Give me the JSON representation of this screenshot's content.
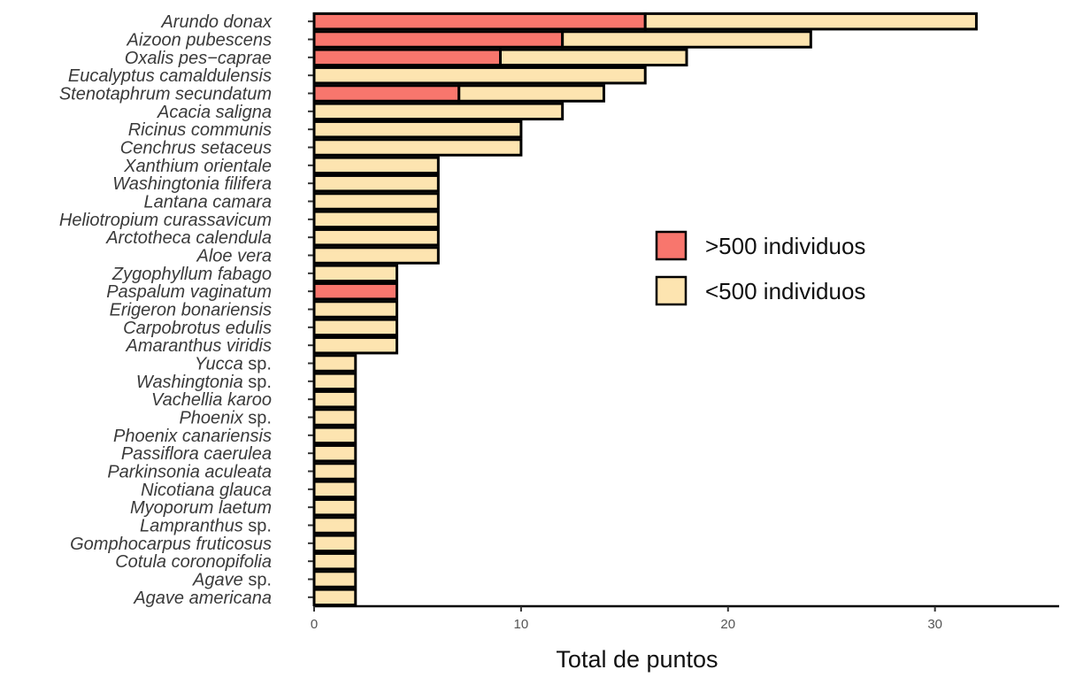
{
  "chart_data": {
    "type": "bar",
    "orientation": "horizontal",
    "stacked": true,
    "xlabel": "Total de puntos",
    "xlim": [
      0,
      36
    ],
    "xticks": [
      0,
      10,
      20,
      30
    ],
    "categories": [
      {
        "name": "Arundo donax",
        "suffix": ""
      },
      {
        "name": "Aizoon pubescens",
        "suffix": ""
      },
      {
        "name": "Oxalis pes−caprae",
        "suffix": ""
      },
      {
        "name": "Eucalyptus camaldulensis",
        "suffix": ""
      },
      {
        "name": "Stenotaphrum secundatum",
        "suffix": ""
      },
      {
        "name": "Acacia saligna",
        "suffix": ""
      },
      {
        "name": "Ricinus communis",
        "suffix": ""
      },
      {
        "name": "Cenchrus setaceus",
        "suffix": ""
      },
      {
        "name": "Xanthium orientale",
        "suffix": ""
      },
      {
        "name": "Washingtonia filifera",
        "suffix": ""
      },
      {
        "name": "Lantana camara",
        "suffix": ""
      },
      {
        "name": "Heliotropium curassavicum",
        "suffix": ""
      },
      {
        "name": "Arctotheca calendula",
        "suffix": ""
      },
      {
        "name": "Aloe vera",
        "suffix": ""
      },
      {
        "name": "Zygophyllum fabago",
        "suffix": ""
      },
      {
        "name": "Paspalum vaginatum",
        "suffix": ""
      },
      {
        "name": "Erigeron bonariensis",
        "suffix": ""
      },
      {
        "name": "Carpobrotus edulis",
        "suffix": ""
      },
      {
        "name": "Amaranthus viridis",
        "suffix": ""
      },
      {
        "name": "Yucca",
        "suffix": " sp."
      },
      {
        "name": "Washingtonia",
        "suffix": " sp."
      },
      {
        "name": "Vachellia karoo",
        "suffix": ""
      },
      {
        "name": "Phoenix",
        "suffix": " sp."
      },
      {
        "name": "Phoenix canariensis",
        "suffix": ""
      },
      {
        "name": "Passiflora caerulea",
        "suffix": ""
      },
      {
        "name": "Parkinsonia aculeata",
        "suffix": ""
      },
      {
        "name": "Nicotiana glauca",
        "suffix": ""
      },
      {
        "name": "Myoporum laetum",
        "suffix": ""
      },
      {
        "name": "Lampranthus",
        "suffix": " sp."
      },
      {
        "name": "Gomphocarpus fruticosus",
        "suffix": ""
      },
      {
        "name": "Cotula coronopifolia",
        "suffix": ""
      },
      {
        "name": "Agave ",
        "suffix": " sp."
      },
      {
        "name": "Agave americana",
        "suffix": ""
      }
    ],
    "series": [
      {
        "name": ">500 individuos",
        "color": "#f8766d",
        "values": [
          16,
          12,
          9,
          0,
          7,
          0,
          0,
          0,
          0,
          0,
          0,
          0,
          0,
          0,
          0,
          4,
          0,
          0,
          0,
          0,
          0,
          0,
          0,
          0,
          0,
          0,
          0,
          0,
          0,
          0,
          0,
          0,
          0
        ]
      },
      {
        "name": "<500 individuos",
        "color": "#fde4b0",
        "values": [
          16,
          12,
          9,
          16,
          7,
          12,
          10,
          10,
          6,
          6,
          6,
          6,
          6,
          6,
          4,
          0,
          4,
          4,
          4,
          2,
          2,
          2,
          2,
          2,
          2,
          2,
          2,
          2,
          2,
          2,
          2,
          2,
          2
        ]
      }
    ],
    "legend_position": "right"
  }
}
